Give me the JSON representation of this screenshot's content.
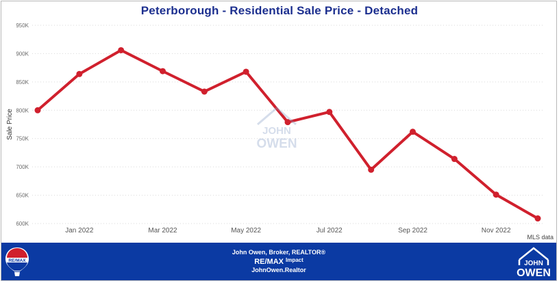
{
  "chart_data": {
    "type": "line",
    "title": "Peterborough - Residential Sale Price - Detached",
    "xlabel": "",
    "ylabel": "Sale Price",
    "x": [
      "2021-12",
      "2022-01",
      "2022-02",
      "2022-03",
      "2022-04",
      "2022-05",
      "2022-06",
      "2022-07",
      "2022-08",
      "2022-09",
      "2022-10",
      "2022-11",
      "2022-12"
    ],
    "x_tick_labels": [
      "Jan 2022",
      "Mar 2022",
      "May 2022",
      "Jul 2022",
      "Sep 2022",
      "Nov 2022"
    ],
    "y_tick_labels": [
      "600K",
      "650K",
      "700K",
      "750K",
      "800K",
      "850K",
      "900K",
      "950K"
    ],
    "series": [
      {
        "values": [
          800000,
          864000,
          906000,
          869000,
          833000,
          868000,
          779000,
          797000,
          695000,
          762000,
          714000,
          651000,
          609000
        ]
      }
    ],
    "ylim": [
      600000,
      950000
    ],
    "grid": true,
    "line_color": "#d0202d"
  },
  "source_note": "MLS data",
  "footer": {
    "line1": "John Owen, Broker, REALTOR®",
    "brand": "RE/MAX",
    "brand_suffix": "Impact",
    "website": "JohnOwen.Realtor",
    "left_logo_text": "RE/MAX",
    "right_logo_top": "JOHN",
    "right_logo_bottom": "OWEN",
    "background_color": "#0b3aa3"
  },
  "watermark": {
    "top": "JOHN",
    "bottom": "OWEN"
  }
}
